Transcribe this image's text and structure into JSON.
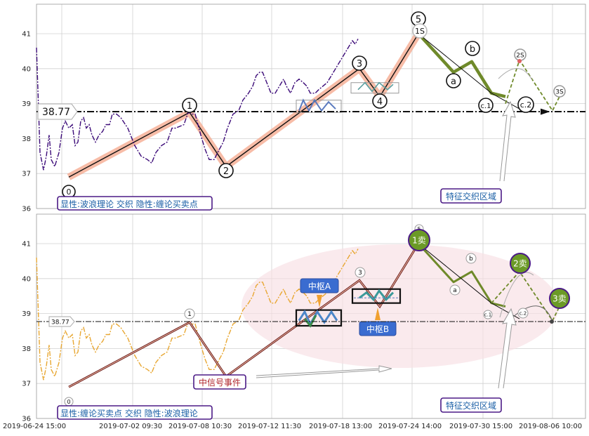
{
  "chart_data": [
    {
      "type": "line",
      "panel": "top",
      "ylim": [
        36,
        41.8
      ],
      "y_ticks": [
        "36",
        "37",
        "38",
        "39",
        "40",
        "41"
      ],
      "reference_line": {
        "value": 38.77,
        "label": "38.77"
      },
      "wave_labels": [
        "0",
        "1",
        "2",
        "3",
        "4",
        "5",
        "1S",
        "a",
        "b",
        "c.1",
        "c.2",
        "2S",
        "3S"
      ],
      "zone_label": "特征交织区域",
      "caption": "显性:波浪理论 交织 隐性:缠论买卖点",
      "price": [
        [
          52,
          40.6
        ],
        [
          57,
          37.6
        ],
        [
          62,
          37.1
        ],
        [
          66,
          37.5
        ],
        [
          70,
          38.1
        ],
        [
          73,
          37.4
        ],
        [
          78,
          37.2
        ],
        [
          84,
          37.6
        ],
        [
          89,
          38.3
        ],
        [
          93,
          38.5
        ],
        [
          98,
          38.3
        ],
        [
          103,
          38.4
        ],
        [
          107,
          37.8
        ],
        [
          111,
          37.9
        ],
        [
          115,
          38.5
        ],
        [
          119,
          38.6
        ],
        [
          123,
          38.3
        ],
        [
          127,
          38.4
        ],
        [
          131,
          38.1
        ],
        [
          136,
          37.9
        ],
        [
          141,
          38.1
        ],
        [
          146,
          38.2
        ],
        [
          151,
          38.4
        ],
        [
          156,
          38.4
        ],
        [
          160,
          38.7
        ],
        [
          166,
          38.7
        ],
        [
          172,
          38.6
        ],
        [
          182,
          38.3
        ],
        [
          192,
          37.8
        ],
        [
          201,
          37.5
        ],
        [
          210,
          37.4
        ],
        [
          216,
          37.3
        ],
        [
          222,
          37.6
        ],
        [
          230,
          37.8
        ],
        [
          238,
          37.9
        ],
        [
          245,
          38.3
        ],
        [
          250,
          38.3
        ],
        [
          262,
          38.4
        ],
        [
          268,
          38.75
        ],
        [
          274,
          38.7
        ],
        [
          278,
          38.7
        ],
        [
          286,
          38.1
        ],
        [
          292,
          37.7
        ],
        [
          298,
          37.4
        ],
        [
          305,
          37.4
        ],
        [
          310,
          37.6
        ],
        [
          318,
          37.9
        ],
        [
          324,
          38.3
        ],
        [
          332,
          38.7
        ],
        [
          340,
          38.8
        ],
        [
          346,
          39.1
        ],
        [
          354,
          39.3
        ],
        [
          360,
          39.5
        ],
        [
          365,
          39.8
        ],
        [
          370,
          39.9
        ],
        [
          374,
          39.9
        ],
        [
          380,
          39.6
        ],
        [
          386,
          39.3
        ],
        [
          392,
          39.3
        ],
        [
          398,
          39.5
        ],
        [
          404,
          39.7
        ],
        [
          408,
          39.5
        ],
        [
          414,
          39.3
        ],
        [
          420,
          39.6
        ],
        [
          426,
          39.7
        ],
        [
          432,
          39.6
        ],
        [
          437,
          39.5
        ],
        [
          442,
          39.3
        ],
        [
          449,
          39.3
        ],
        [
          454,
          39.4
        ],
        [
          460,
          39.5
        ],
        [
          466,
          39.6
        ],
        [
          472,
          39.8
        ],
        [
          478,
          40.0
        ],
        [
          484,
          40.2
        ],
        [
          490,
          40.4
        ],
        [
          496,
          40.6
        ],
        [
          502,
          40.8
        ],
        [
          506,
          40.7
        ],
        [
          510,
          40.85
        ]
      ]
    },
    {
      "type": "line",
      "panel": "bottom",
      "ylim": [
        36,
        41.8
      ],
      "y_ticks": [
        "36",
        "37",
        "38",
        "39",
        "40",
        "41"
      ],
      "reference_line": {
        "value": 38.77,
        "label": "38.77"
      },
      "wave_labels": [
        "0",
        "1",
        "3",
        "5",
        "a",
        "b",
        "c.1",
        "c.2"
      ],
      "center_labels": [
        "中枢A",
        "中枢B"
      ],
      "event_label": "中信号事件",
      "sell_labels": [
        "1卖",
        "2卖",
        "3卖"
      ],
      "zone_label": "特征交织区域",
      "caption": "显性:缠论买卖点 交织 隐性:波浪理论",
      "x_ticks": [
        "2019-06-24 15:00",
        "2019-07-02 09:30",
        "2019-07-08 10:30",
        "2019-07-12 11:30",
        "2019-07-18 13:00",
        "2019-07-24 14:00",
        "2019-07-30 15:00",
        "2019-08-06 10:00"
      ]
    }
  ]
}
